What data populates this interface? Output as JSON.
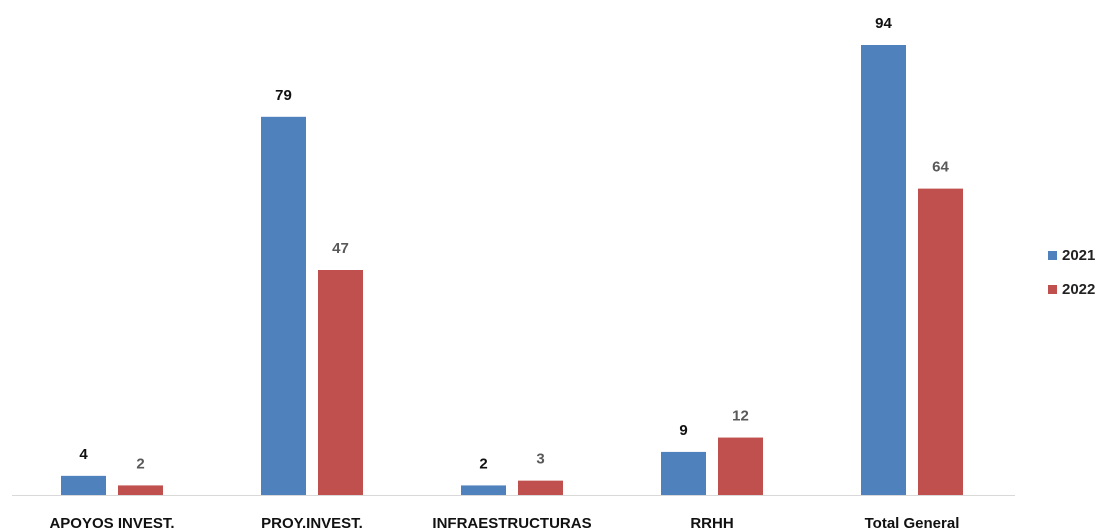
{
  "chart_data": {
    "type": "bar",
    "categories": [
      "APOYOS INVEST.",
      "PROY.INVEST.",
      "INFRAESTRUCTURAS",
      "RRHH",
      "Total General"
    ],
    "series": [
      {
        "name": "2021",
        "values": [
          4,
          79,
          2,
          9,
          94
        ],
        "color": "#4F81BD",
        "label_color": "#111111"
      },
      {
        "name": "2022",
        "values": [
          2,
          47,
          3,
          12,
          64
        ],
        "color": "#C0504D",
        "label_color": "#595959"
      }
    ],
    "ylim": [
      0,
      94
    ],
    "grid": false,
    "legend_position": "right",
    "title": "",
    "xlabel": "",
    "ylabel": ""
  }
}
